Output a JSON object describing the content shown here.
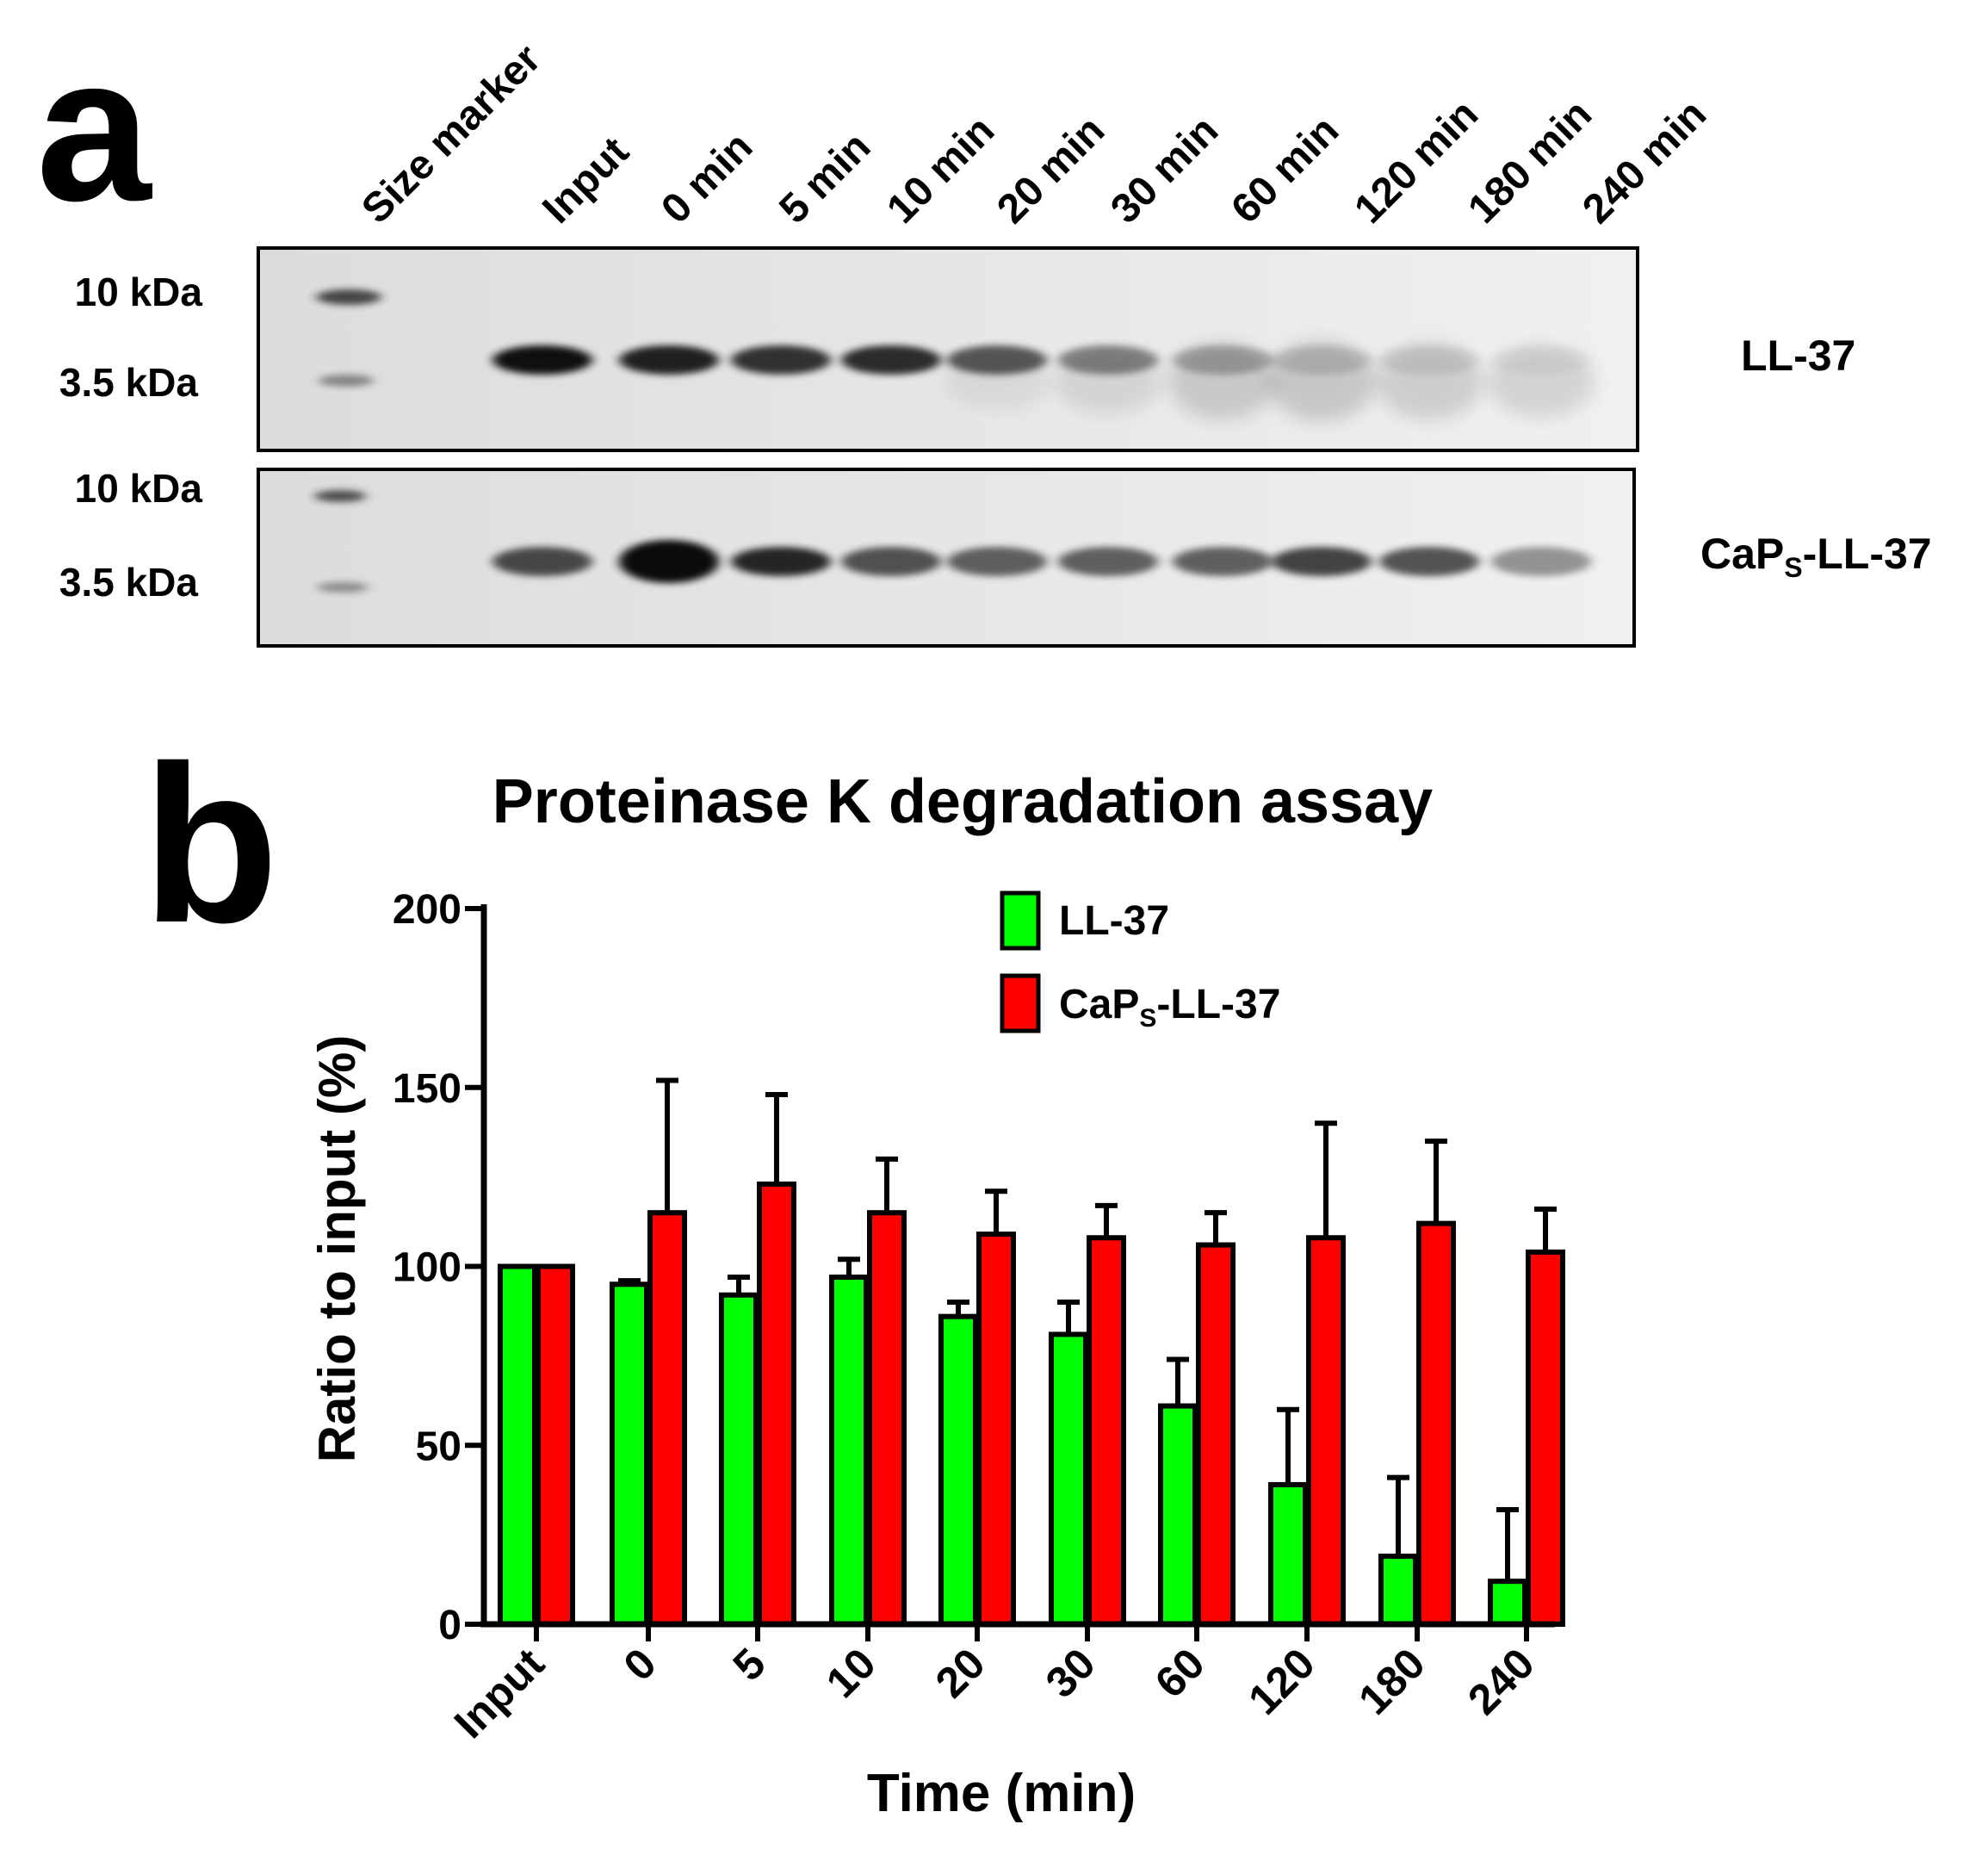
{
  "panel_a": {
    "letter": "a",
    "lane_labels": [
      "Size marker",
      "Input",
      "0 min",
      "5 min",
      "10 min",
      "20 min",
      "30 min",
      "60 min",
      "120 min",
      "180 min",
      "240 min"
    ],
    "blots": [
      {
        "name": "LL-37",
        "name_parts": {
          "main": "LL-37"
        },
        "marker_labels": [
          "10 kDa",
          "3.5 kDa"
        ],
        "band_intensity": [
          0.98,
          0.9,
          0.82,
          0.85,
          0.65,
          0.45,
          0.28,
          0.15,
          0.09,
          0.05
        ],
        "band_smear": [
          0.05,
          0.05,
          0.05,
          0.05,
          0.15,
          0.35,
          0.7,
          0.8,
          0.7,
          0.6
        ]
      },
      {
        "name": "CaPS-LL-37",
        "name_parts": {
          "pre": "CaP",
          "sub": "S",
          "post": "-LL-37"
        },
        "marker_labels": [
          "10 kDa",
          "3.5 kDa"
        ],
        "band_intensity": [
          0.72,
          1.0,
          0.88,
          0.68,
          0.62,
          0.62,
          0.62,
          0.75,
          0.68,
          0.4
        ],
        "band_smear": [
          0.05,
          0.05,
          0.05,
          0.05,
          0.05,
          0.05,
          0.05,
          0.05,
          0.05,
          0.05
        ]
      }
    ]
  },
  "panel_b": {
    "letter": "b",
    "legend": [
      {
        "label": "LL-37",
        "color": "#00ff00"
      },
      {
        "label_pre": "CaP",
        "label_sub": "S",
        "label_post": "-LL-37",
        "color": "#ff0000"
      }
    ]
  },
  "chart_data": {
    "type": "bar",
    "title": "Proteinase K degradation assay",
    "xlabel": "Time (min)",
    "ylabel": "Ratio to input (%)",
    "ylim": [
      0,
      200
    ],
    "yticks": [
      0,
      50,
      100,
      150,
      200
    ],
    "categories": [
      "Input",
      "0",
      "5",
      "10",
      "20",
      "30",
      "60",
      "120",
      "180",
      "240"
    ],
    "series": [
      {
        "name": "LL-37",
        "color": "#00ff00",
        "values": [
          100,
          95,
          92,
          97,
          86,
          81,
          61,
          39,
          19,
          12
        ],
        "errors": [
          0,
          1,
          5,
          5,
          4,
          9,
          13,
          21,
          22,
          20
        ]
      },
      {
        "name": "CaPS-LL-37",
        "color": "#ff0000",
        "values": [
          100,
          115,
          123,
          115,
          109,
          108,
          106,
          108,
          112,
          104
        ],
        "errors": [
          0,
          37,
          25,
          15,
          12,
          9,
          9,
          32,
          23,
          12
        ]
      }
    ],
    "legend_position": "top-right"
  }
}
